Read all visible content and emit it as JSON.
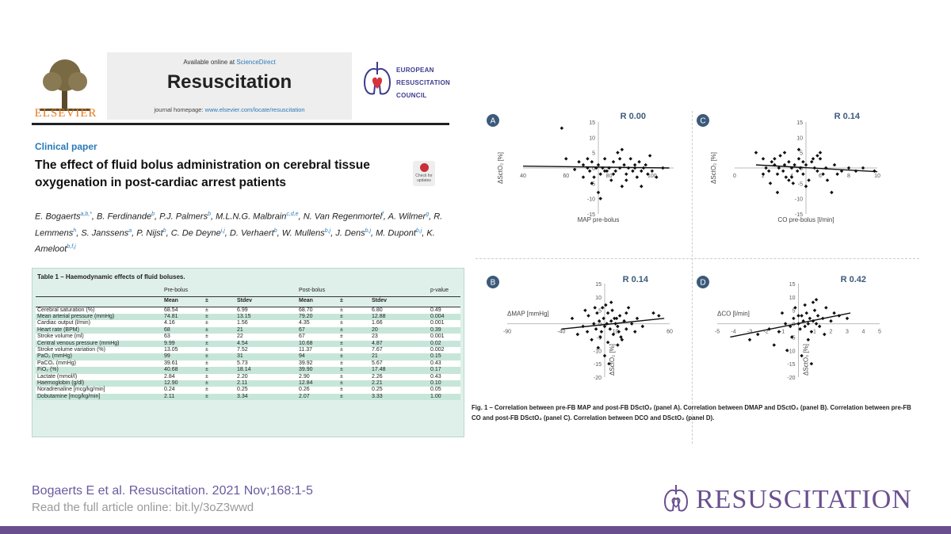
{
  "header": {
    "publisher": "ELSEVIER",
    "available_prefix": "Available online at ",
    "available_link": "ScienceDirect",
    "journal_title": "Resuscitation",
    "homepage_prefix": "journal homepage: ",
    "homepage_link": "www.elsevier.com/locate/resuscitation",
    "erc_lines": [
      "EUROPEAN",
      "RESUSCITATION",
      "COUNCIL"
    ],
    "check_updates": "Check for updates"
  },
  "article": {
    "section": "Clinical paper",
    "title": "The effect of fluid bolus administration on cerebral tissue oxygenation in post-cardiac arrest patients",
    "authors": [
      {
        "name": "E. Bogaerts",
        "aff": "a,b,*"
      },
      {
        "name": "B. Ferdinande",
        "aff": "b"
      },
      {
        "name": "P.J. Palmers",
        "aff": "b"
      },
      {
        "name": "M.L.N.G. Malbrain",
        "aff": "c,d,e"
      },
      {
        "name": "N. Van Regenmortel",
        "aff": "f"
      },
      {
        "name": "A. Wilmer",
        "aff": "g"
      },
      {
        "name": "R. Lemmens",
        "aff": "h"
      },
      {
        "name": "S. Janssens",
        "aff": "a"
      },
      {
        "name": "P. Nijst",
        "aff": "b"
      },
      {
        "name": "C. De Deyne",
        "aff": "i,j"
      },
      {
        "name": "D. Verhaert",
        "aff": "b"
      },
      {
        "name": "W. Mullens",
        "aff": "b,j"
      },
      {
        "name": "J. Dens",
        "aff": "b,j"
      },
      {
        "name": "M. Dupont",
        "aff": "b,j"
      },
      {
        "name": "K. Ameloot",
        "aff": "b,f,j"
      }
    ]
  },
  "table": {
    "caption": "Table 1 – Haemodynamic effects of fluid boluses.",
    "group_pre": "Pre-bolus",
    "group_post": "Post-bolus",
    "pvalue_label": "p-value",
    "columns": [
      "Mean",
      "±",
      "Stdev",
      "Mean",
      "±",
      "Stdev"
    ],
    "rows": [
      {
        "label": "Cerebral saturation (%)",
        "cells": [
          "68.54",
          "±",
          "6.99",
          "68.70",
          "±",
          "6.80",
          "0.49"
        ]
      },
      {
        "label": "Mean arterial pressure (mmHg)",
        "cells": [
          "74.81",
          "±",
          "13.15",
          "79.20",
          "±",
          "12.88",
          "0.004"
        ]
      },
      {
        "label": "Cardiac output (l/min)",
        "cells": [
          "4.16",
          "±",
          "1.56",
          "4.35",
          "±",
          "1.66",
          "0.001"
        ]
      },
      {
        "label": "Heart rate (BPM)",
        "cells": [
          "68",
          "±",
          "21",
          "67",
          "±",
          "20",
          "0.39"
        ]
      },
      {
        "label": "Stroke volume (ml)",
        "cells": [
          "63",
          "±",
          "22",
          "67",
          "±",
          "23",
          "0.001"
        ]
      },
      {
        "label": "Central venous pressure (mmHg)",
        "cells": [
          "9.99",
          "±",
          "4.54",
          "10.68",
          "±",
          "4.87",
          "0.02"
        ]
      },
      {
        "label": "Stroke volume variation (%)",
        "cells": [
          "13.05",
          "±",
          "7.52",
          "11.37",
          "±",
          "7.67",
          "0.002"
        ]
      },
      {
        "label": "PaO₂ (mmHg)",
        "cells": [
          "99",
          "±",
          "31",
          "94",
          "±",
          "21",
          "0.15"
        ]
      },
      {
        "label": "PaCO₂ (mmHg)",
        "cells": [
          "39.61",
          "±",
          "5.73",
          "39.92",
          "±",
          "5.67",
          "0.43"
        ]
      },
      {
        "label": "FiO₂ (%)",
        "cells": [
          "40.68",
          "±",
          "18.14",
          "39.90",
          "±",
          "17.48",
          "0.17"
        ]
      },
      {
        "label": "Lactate (mmol/l)",
        "cells": [
          "2.84",
          "±",
          "2.20",
          "2.90",
          "±",
          "2.26",
          "0.43"
        ]
      },
      {
        "label": "Haemoglobin (g/dl)",
        "cells": [
          "12.90",
          "±",
          "2.11",
          "12.84",
          "±",
          "2.21",
          "0.10"
        ]
      },
      {
        "label": "Noradrenaline [mcg/kg/min]",
        "cells": [
          "0.24",
          "±",
          "0.25",
          "0.26",
          "±",
          "0.25",
          "0.05"
        ]
      },
      {
        "label": "Dobutamine [mcg/kg/min]",
        "cells": [
          "2.11",
          "±",
          "3.34",
          "2.07",
          "±",
          "3.33",
          "1.00"
        ]
      }
    ]
  },
  "chart_data": [
    {
      "panel": "A",
      "type": "scatter",
      "r_label": "R  0.00",
      "xlabel": "MAP pre-bolus",
      "ylabel": "ΔSctO₂ [%]",
      "xlim": [
        40,
        110
      ],
      "ylim": [
        -15,
        15
      ],
      "xticks": [
        40,
        60,
        80,
        100
      ],
      "yticks": [
        -15,
        -10,
        -5,
        0,
        5,
        10,
        15
      ],
      "trend": [
        [
          40,
          0.6
        ],
        [
          108,
          0.0
        ]
      ],
      "points": [
        [
          58,
          13
        ],
        [
          60,
          3
        ],
        [
          64,
          -0.5
        ],
        [
          66,
          2
        ],
        [
          68,
          1
        ],
        [
          70,
          0
        ],
        [
          71,
          -1
        ],
        [
          72,
          2
        ],
        [
          73,
          -3
        ],
        [
          74,
          0
        ],
        [
          75,
          1
        ],
        [
          76,
          -2
        ],
        [
          77,
          0
        ],
        [
          78,
          3
        ],
        [
          79,
          -1
        ],
        [
          80,
          0
        ],
        [
          81,
          -4
        ],
        [
          82,
          2
        ],
        [
          83,
          -1
        ],
        [
          84,
          5
        ],
        [
          85,
          0
        ],
        [
          86,
          -6
        ],
        [
          87,
          1
        ],
        [
          88,
          -2
        ],
        [
          89,
          0
        ],
        [
          90,
          3
        ],
        [
          91,
          -1
        ],
        [
          92,
          0
        ],
        [
          93,
          -3
        ],
        [
          94,
          2
        ],
        [
          95,
          -1
        ],
        [
          96,
          0
        ],
        [
          97,
          1
        ],
        [
          98,
          -2
        ],
        [
          99,
          4
        ],
        [
          100,
          -1
        ],
        [
          102,
          -3
        ],
        [
          105,
          0
        ],
        [
          68,
          -3
        ],
        [
          72,
          -5
        ],
        [
          75,
          -8
        ],
        [
          76,
          -10
        ],
        [
          78,
          -1
        ],
        [
          82,
          -2
        ],
        [
          85,
          3
        ],
        [
          88,
          -4
        ],
        [
          92,
          1
        ],
        [
          95,
          -6
        ],
        [
          70,
          3
        ],
        [
          86,
          6
        ]
      ]
    },
    {
      "panel": "C",
      "type": "scatter",
      "r_label": "R  0.14",
      "xlabel": "CO pre-bolus [l/min]",
      "ylabel": "ΔSctO₂ [%]",
      "xlim": [
        0,
        10
      ],
      "ylim": [
        -15,
        15
      ],
      "xticks": [
        0,
        2,
        4,
        6,
        8,
        10
      ],
      "yticks": [
        -15,
        -10,
        -5,
        0,
        5,
        10,
        15
      ],
      "trend": [
        [
          1.5,
          1.0
        ],
        [
          10,
          -1.2
        ]
      ],
      "points": [
        [
          1.5,
          5
        ],
        [
          2,
          3
        ],
        [
          2.2,
          0
        ],
        [
          2.4,
          -1
        ],
        [
          2.6,
          2
        ],
        [
          2.8,
          1
        ],
        [
          3,
          -2
        ],
        [
          3.1,
          0
        ],
        [
          3.2,
          4
        ],
        [
          3.4,
          -1
        ],
        [
          3.5,
          1
        ],
        [
          3.6,
          -3
        ],
        [
          3.8,
          2
        ],
        [
          4,
          0
        ],
        [
          4.1,
          -5
        ],
        [
          4.2,
          1
        ],
        [
          4.4,
          -1
        ],
        [
          4.5,
          3
        ],
        [
          4.6,
          0
        ],
        [
          4.8,
          -2
        ],
        [
          5,
          1
        ],
        [
          5.2,
          -4
        ],
        [
          5.4,
          2
        ],
        [
          5.6,
          0
        ],
        [
          5.8,
          -1
        ],
        [
          6,
          3
        ],
        [
          6.2,
          -2
        ],
        [
          6.4,
          0
        ],
        [
          6.8,
          -8
        ],
        [
          7,
          1
        ],
        [
          7.5,
          -1
        ],
        [
          8,
          0
        ],
        [
          8.5,
          -1
        ],
        [
          9,
          0
        ],
        [
          9.8,
          -1
        ],
        [
          2.5,
          -5
        ],
        [
          3,
          -8
        ],
        [
          3.5,
          5
        ],
        [
          4,
          -3
        ],
        [
          4.5,
          6
        ],
        [
          5,
          -6
        ],
        [
          5.5,
          3
        ],
        [
          6,
          5
        ],
        [
          6.5,
          -4
        ],
        [
          7.2,
          -2
        ],
        [
          2,
          -2
        ],
        [
          2.8,
          3
        ],
        [
          3.8,
          -4
        ],
        [
          4.8,
          2
        ],
        [
          5.8,
          4
        ]
      ]
    },
    {
      "panel": "B",
      "type": "scatter",
      "r_label": "R  0.14",
      "xlabel": "ΔMAP [mmHg]",
      "ylabel": "ΔSctO₂ [%]",
      "xlim": [
        -90,
        60
      ],
      "ylim": [
        -20,
        15
      ],
      "xticks": [
        -90,
        -40,
        10,
        60
      ],
      "yticks": [
        -20,
        -15,
        -10,
        -5,
        0,
        5,
        10,
        15
      ],
      "trend": [
        [
          -40,
          -2
        ],
        [
          55,
          2
        ]
      ],
      "points": [
        [
          -30,
          2
        ],
        [
          -20,
          -1
        ],
        [
          -15,
          3
        ],
        [
          -10,
          0
        ],
        [
          -8,
          -2
        ],
        [
          -5,
          1
        ],
        [
          -3,
          -3
        ],
        [
          -1,
          2
        ],
        [
          0,
          -1
        ],
        [
          2,
          0
        ],
        [
          3,
          4
        ],
        [
          5,
          -2
        ],
        [
          6,
          1
        ],
        [
          8,
          -4
        ],
        [
          9,
          2
        ],
        [
          10,
          0
        ],
        [
          12,
          -1
        ],
        [
          14,
          3
        ],
        [
          15,
          -5
        ],
        [
          18,
          1
        ],
        [
          20,
          -2
        ],
        [
          22,
          6
        ],
        [
          25,
          0
        ],
        [
          28,
          -3
        ],
        [
          30,
          2
        ],
        [
          35,
          -1
        ],
        [
          45,
          4
        ],
        [
          50,
          3
        ],
        [
          -12,
          -6
        ],
        [
          -6,
          -9
        ],
        [
          0,
          -12
        ],
        [
          4,
          -15
        ],
        [
          -18,
          5
        ],
        [
          -2,
          6
        ],
        [
          6,
          8
        ],
        [
          12,
          -8
        ],
        [
          -25,
          -4
        ],
        [
          16,
          -6
        ],
        [
          -7,
          4
        ],
        [
          3,
          -7
        ],
        [
          -16,
          -3
        ],
        [
          7,
          5
        ],
        [
          11,
          2
        ],
        [
          20,
          4
        ],
        [
          -4,
          -5
        ],
        [
          1,
          7
        ],
        [
          -9,
          6
        ],
        [
          13,
          -3
        ]
      ]
    },
    {
      "panel": "D",
      "type": "scatter",
      "r_label": "R  0.42",
      "xlabel": "ΔCO [l/min]",
      "ylabel": "ΔSctO₂ [%]",
      "xlim": [
        -5,
        5
      ],
      "ylim": [
        -20,
        15
      ],
      "xticks": [
        -5,
        -4,
        -3,
        -2,
        -1,
        0,
        1,
        2,
        3,
        4,
        5
      ],
      "yticks": [
        -20,
        -15,
        -10,
        -5,
        0,
        5,
        10,
        15
      ],
      "trend": [
        [
          -4.2,
          -5
        ],
        [
          3.2,
          4
        ]
      ],
      "points": [
        [
          -3,
          -6
        ],
        [
          -2.5,
          -4
        ],
        [
          -1.8,
          -2
        ],
        [
          -1.2,
          -3
        ],
        [
          -0.8,
          0
        ],
        [
          -0.5,
          -1
        ],
        [
          -0.3,
          2
        ],
        [
          0,
          0
        ],
        [
          0.1,
          -2
        ],
        [
          0.2,
          3
        ],
        [
          0.3,
          1
        ],
        [
          0.4,
          -1
        ],
        [
          0.5,
          4
        ],
        [
          0.6,
          0
        ],
        [
          0.7,
          2
        ],
        [
          0.8,
          -3
        ],
        [
          0.9,
          1
        ],
        [
          1,
          5
        ],
        [
          1.1,
          0
        ],
        [
          1.2,
          3
        ],
        [
          1.3,
          -1
        ],
        [
          1.5,
          2
        ],
        [
          1.7,
          6
        ],
        [
          2,
          1
        ],
        [
          2.5,
          3
        ],
        [
          3,
          2
        ],
        [
          -1.5,
          -8
        ],
        [
          -0.7,
          -10
        ],
        [
          0.2,
          -12
        ],
        [
          0.8,
          -15
        ],
        [
          -0.2,
          6
        ],
        [
          0.4,
          7
        ],
        [
          1.1,
          9
        ],
        [
          -1,
          4
        ],
        [
          1.6,
          -4
        ],
        [
          0.6,
          -6
        ],
        [
          -0.4,
          -5
        ],
        [
          2.2,
          4
        ],
        [
          0.9,
          8
        ],
        [
          0,
          3
        ]
      ]
    }
  ],
  "figure_caption": "Fig. 1 – Correlation between pre-FB MAP and post-FB DSctO₂ (panel A). Correlation between DMAP and DSctO₂ (panel B). Correlation between pre-FB CO and post-FB DSctO₂ (panel C). Correlation between DCO and DSctO₂ (panel D).",
  "footer": {
    "citation": "Bogaerts E et al.  Resuscitation. 2021 Nov;168:1-5",
    "read_more": "Read the full article online: bit.ly/3oZ3wwd",
    "brand": "RESUSCITATION"
  },
  "colors": {
    "accent": "#6a4f8f",
    "link": "#2a7ab8",
    "elsevier": "#e6781e",
    "table_bg": "#dff0ea",
    "table_stripe": "#c7e6da"
  }
}
